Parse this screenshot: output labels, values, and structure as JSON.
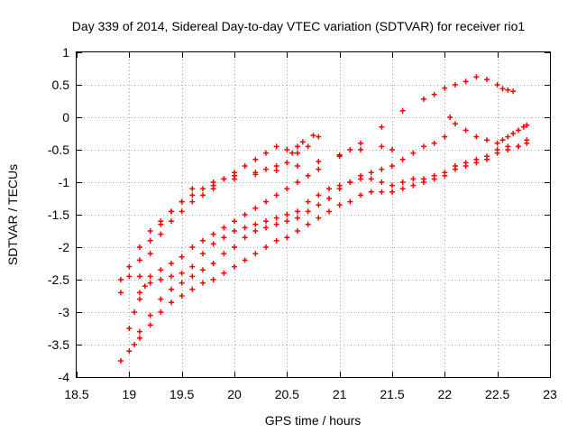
{
  "chart_data": {
    "type": "scatter",
    "title": "Day 339 of 2014, Sidereal Day-to-day VTEC variation (SDTVAR) for receiver rio1",
    "xlabel": "GPS time / hours",
    "ylabel": "SDTVAR / TECUs",
    "xlim": [
      18.5,
      23
    ],
    "ylim": [
      -4,
      1
    ],
    "xticks": [
      "18.5",
      "19",
      "19.5",
      "20",
      "20.5",
      "21",
      "21.5",
      "22",
      "22.5",
      "23"
    ],
    "yticks": [
      "-4",
      "-3.5",
      "-3",
      "-2.5",
      "-2",
      "-1.5",
      "-1",
      "-0.5",
      "0",
      "0.5",
      "1"
    ],
    "grid": true,
    "marker": "+",
    "color": "#ff0000",
    "series": [
      {
        "points": [
          [
            18.92,
            -2.7
          ],
          [
            19.0,
            -2.45
          ],
          [
            19.1,
            -2.2
          ],
          [
            19.2,
            -1.9
          ],
          [
            19.3,
            -1.65
          ],
          [
            19.4,
            -1.45
          ],
          [
            19.5,
            -1.3
          ],
          [
            19.6,
            -1.1
          ],
          [
            19.8,
            -1.05
          ],
          [
            20.0,
            -0.95
          ],
          [
            20.2,
            -0.88
          ],
          [
            20.4,
            -0.82
          ],
          [
            20.6,
            -0.75
          ],
          [
            20.8,
            -0.68
          ],
          [
            21.0,
            -0.58
          ],
          [
            21.1,
            -0.5
          ],
          [
            21.2,
            -0.4
          ],
          [
            21.4,
            -0.15
          ],
          [
            21.6,
            0.1
          ],
          [
            21.8,
            0.28
          ],
          [
            21.9,
            0.35
          ],
          [
            22.0,
            0.45
          ],
          [
            22.1,
            0.5
          ],
          [
            22.2,
            0.55
          ],
          [
            22.3,
            0.62
          ],
          [
            22.4,
            0.58
          ],
          [
            22.5,
            0.5
          ],
          [
            22.55,
            0.44
          ],
          [
            22.6,
            0.42
          ],
          [
            22.65,
            0.4
          ]
        ]
      },
      {
        "points": [
          [
            18.92,
            -2.5
          ],
          [
            19.0,
            -2.3
          ],
          [
            19.1,
            -2.0
          ],
          [
            19.2,
            -1.75
          ],
          [
            19.3,
            -1.6
          ],
          [
            19.4,
            -1.45
          ],
          [
            19.5,
            -1.3
          ],
          [
            19.6,
            -1.2
          ],
          [
            19.7,
            -1.1
          ],
          [
            19.8,
            -1.0
          ],
          [
            19.9,
            -0.95
          ],
          [
            20.0,
            -0.9
          ],
          [
            20.2,
            -0.85
          ],
          [
            20.3,
            -0.8
          ],
          [
            20.4,
            -0.75
          ],
          [
            20.5,
            -0.7
          ],
          [
            20.6,
            -0.55
          ],
          [
            20.7,
            -0.45
          ],
          [
            20.75,
            -0.28
          ],
          [
            20.8,
            -0.3
          ]
        ]
      },
      {
        "points": [
          [
            19.1,
            -2.45
          ],
          [
            19.2,
            -2.1
          ],
          [
            19.3,
            -1.8
          ],
          [
            19.4,
            -1.6
          ],
          [
            19.5,
            -1.45
          ],
          [
            19.6,
            -1.3
          ],
          [
            19.7,
            -1.2
          ],
          [
            19.8,
            -1.1
          ],
          [
            19.9,
            -0.95
          ],
          [
            20.0,
            -0.85
          ],
          [
            20.1,
            -0.75
          ],
          [
            20.2,
            -0.65
          ],
          [
            20.3,
            -0.55
          ],
          [
            20.4,
            -0.45
          ],
          [
            20.5,
            -0.5
          ],
          [
            20.55,
            -0.55
          ],
          [
            20.6,
            -0.45
          ],
          [
            20.65,
            -0.38
          ]
        ]
      },
      {
        "points": [
          [
            19.0,
            -3.25
          ],
          [
            19.05,
            -3.0
          ],
          [
            19.1,
            -2.8
          ],
          [
            19.15,
            -2.6
          ],
          [
            19.2,
            -2.45
          ],
          [
            19.3,
            -2.35
          ],
          [
            19.4,
            -2.25
          ],
          [
            19.5,
            -2.15
          ],
          [
            19.6,
            -2.0
          ],
          [
            19.7,
            -1.9
          ],
          [
            19.8,
            -1.8
          ],
          [
            19.9,
            -1.7
          ],
          [
            20.0,
            -1.6
          ],
          [
            20.1,
            -1.5
          ],
          [
            20.2,
            -1.4
          ],
          [
            20.3,
            -1.3
          ],
          [
            20.4,
            -1.2
          ],
          [
            20.5,
            -1.1
          ],
          [
            20.6,
            -1.0
          ],
          [
            20.7,
            -0.9
          ],
          [
            20.8,
            -0.8
          ],
          [
            21.0,
            -0.6
          ],
          [
            21.2,
            -0.5
          ],
          [
            21.4,
            -0.45
          ],
          [
            21.5,
            -0.5
          ]
        ]
      },
      {
        "points": [
          [
            19.1,
            -2.7
          ],
          [
            19.2,
            -2.55
          ],
          [
            19.3,
            -2.5
          ],
          [
            19.4,
            -2.45
          ],
          [
            19.5,
            -2.4
          ],
          [
            19.6,
            -2.3
          ],
          [
            19.7,
            -2.1
          ],
          [
            19.8,
            -1.95
          ],
          [
            19.9,
            -1.85
          ],
          [
            20.0,
            -1.75
          ],
          [
            20.1,
            -1.7
          ],
          [
            20.2,
            -1.65
          ],
          [
            20.3,
            -1.6
          ],
          [
            20.4,
            -1.55
          ],
          [
            20.5,
            -1.5
          ],
          [
            20.6,
            -1.45
          ],
          [
            20.7,
            -1.3
          ],
          [
            20.8,
            -1.2
          ],
          [
            20.9,
            -1.1
          ],
          [
            21.0,
            -1.05
          ],
          [
            21.1,
            -1.0
          ],
          [
            21.2,
            -0.95
          ],
          [
            21.3,
            -0.95
          ],
          [
            21.4,
            -1.0
          ],
          [
            21.5,
            -1.05
          ],
          [
            21.6,
            -1.0
          ],
          [
            21.7,
            -0.95
          ],
          [
            21.8,
            -0.95
          ],
          [
            21.9,
            -0.9
          ],
          [
            22.0,
            -0.85
          ],
          [
            22.1,
            -0.8
          ],
          [
            22.2,
            -0.75
          ],
          [
            22.3,
            -0.7
          ],
          [
            22.4,
            -0.65
          ],
          [
            22.5,
            -0.5
          ],
          [
            22.55,
            -0.35
          ],
          [
            22.6,
            -0.3
          ],
          [
            22.65,
            -0.25
          ],
          [
            22.7,
            -0.2
          ],
          [
            22.75,
            -0.15
          ],
          [
            22.78,
            -0.12
          ]
        ]
      },
      {
        "points": [
          [
            18.92,
            -3.75
          ],
          [
            19.0,
            -3.6
          ],
          [
            19.1,
            -3.4
          ],
          [
            19.2,
            -3.2
          ],
          [
            19.3,
            -3.0
          ],
          [
            19.4,
            -2.85
          ],
          [
            19.5,
            -2.75
          ],
          [
            19.6,
            -2.65
          ],
          [
            19.7,
            -2.55
          ],
          [
            19.8,
            -2.5
          ],
          [
            19.9,
            -2.4
          ],
          [
            20.0,
            -2.3
          ],
          [
            20.1,
            -2.2
          ],
          [
            20.2,
            -2.1
          ],
          [
            20.3,
            -2.0
          ],
          [
            20.4,
            -1.9
          ],
          [
            20.5,
            -1.85
          ],
          [
            20.6,
            -1.75
          ],
          [
            20.7,
            -1.65
          ],
          [
            20.8,
            -1.55
          ],
          [
            20.9,
            -1.45
          ],
          [
            21.0,
            -1.35
          ],
          [
            21.1,
            -1.3
          ],
          [
            21.2,
            -1.2
          ],
          [
            21.3,
            -1.15
          ],
          [
            21.4,
            -1.15
          ],
          [
            21.5,
            -1.15
          ],
          [
            21.6,
            -1.1
          ],
          [
            21.7,
            -1.05
          ],
          [
            21.8,
            -1.0
          ],
          [
            21.9,
            -0.95
          ],
          [
            22.0,
            -0.9
          ],
          [
            22.1,
            -0.75
          ],
          [
            22.2,
            -0.7
          ],
          [
            22.3,
            -0.65
          ],
          [
            22.4,
            -0.6
          ],
          [
            22.5,
            -0.55
          ],
          [
            22.6,
            -0.5
          ],
          [
            22.7,
            -0.45
          ],
          [
            22.78,
            -0.4
          ]
        ]
      },
      {
        "points": [
          [
            19.05,
            -3.5
          ],
          [
            19.1,
            -3.3
          ],
          [
            19.2,
            -3.05
          ],
          [
            19.3,
            -2.8
          ],
          [
            19.4,
            -2.65
          ],
          [
            19.5,
            -2.55
          ],
          [
            19.6,
            -2.45
          ],
          [
            19.7,
            -2.35
          ],
          [
            19.8,
            -2.25
          ],
          [
            19.9,
            -2.1
          ],
          [
            20.0,
            -2.0
          ],
          [
            20.1,
            -1.85
          ],
          [
            20.2,
            -1.75
          ],
          [
            20.3,
            -1.7
          ],
          [
            20.4,
            -1.65
          ],
          [
            20.5,
            -1.6
          ],
          [
            20.6,
            -1.55
          ],
          [
            20.7,
            -1.45
          ],
          [
            20.8,
            -1.35
          ],
          [
            20.9,
            -1.25
          ],
          [
            21.0,
            -1.1
          ],
          [
            21.1,
            -1.0
          ],
          [
            21.2,
            -0.9
          ],
          [
            21.3,
            -0.85
          ],
          [
            21.4,
            -0.8
          ],
          [
            21.5,
            -0.75
          ],
          [
            21.6,
            -0.65
          ],
          [
            21.7,
            -0.55
          ],
          [
            21.8,
            -0.45
          ],
          [
            21.9,
            -0.4
          ],
          [
            22.0,
            -0.3
          ],
          [
            22.05,
            0.0
          ],
          [
            22.1,
            -0.1
          ],
          [
            22.2,
            -0.2
          ],
          [
            22.3,
            -0.3
          ],
          [
            22.4,
            -0.35
          ],
          [
            22.5,
            -0.4
          ],
          [
            22.6,
            -0.45
          ],
          [
            22.7,
            -0.45
          ],
          [
            22.78,
            -0.35
          ]
        ]
      }
    ]
  }
}
